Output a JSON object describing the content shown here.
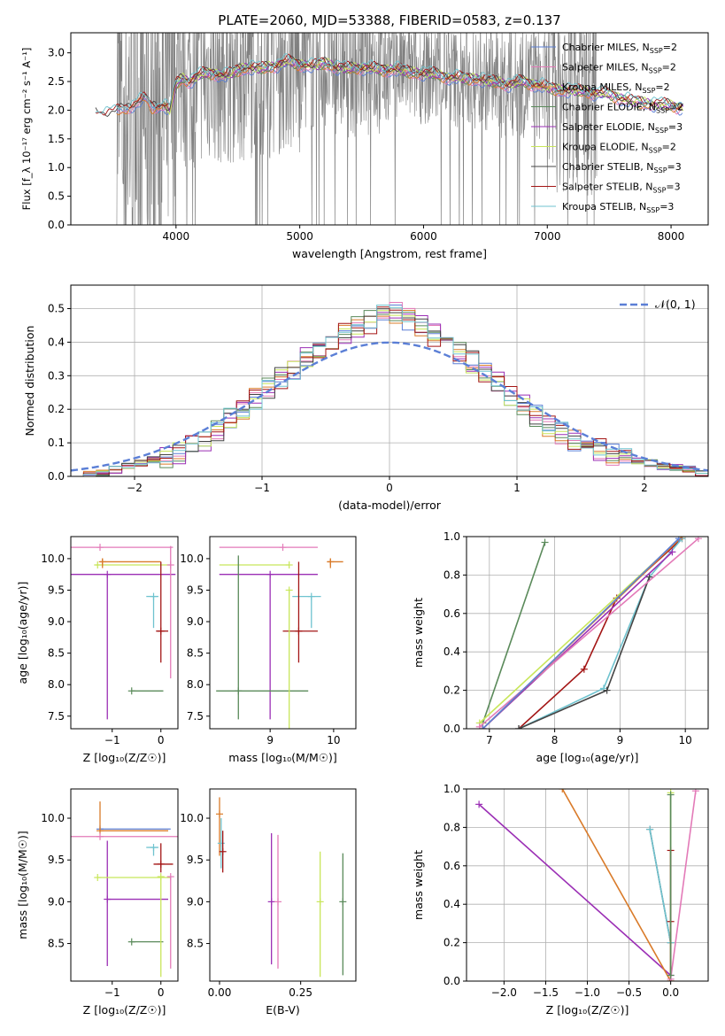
{
  "figure": {
    "title": "PLATE=2060, MJD=53388, FIBERID=0583, z=0.137",
    "colors": {
      "Chabrier MILES": "#5b7fd6",
      "Salpeter MILES": "#e37ab8",
      "Kroupa MILES": "#d97b2a",
      "Chabrier ELODIE": "#5a8a5a",
      "Salpeter ELODIE": "#9b2fb5",
      "Kroupa ELODIE": "#c8e65a",
      "Chabrier STELIB": "#444444",
      "Salpeter STELIB": "#a31515",
      "Kroupa STELIB": "#6fc3cf",
      "data": "#808080",
      "normal": "#5b7fd6"
    }
  },
  "chart_data": [
    {
      "id": "spectrum",
      "type": "line",
      "xlabel": "wavelength [Angstrom, rest frame]",
      "ylabel": "Flux [f_λ 10⁻¹⁷ erg cm⁻² s⁻¹ A⁻¹]",
      "xlim": [
        3150,
        8300
      ],
      "ylim": [
        0,
        3.35
      ],
      "xticks": [
        4000,
        5000,
        6000,
        7000,
        8000
      ],
      "yticks": [
        0.0,
        0.5,
        1.0,
        1.5,
        2.0,
        2.5,
        3.0
      ],
      "grid": false,
      "legend_position": "top-right",
      "legend": [
        {
          "base": "Chabrier MILES, N",
          "sub": "SSP",
          "tail": "=2"
        },
        {
          "base": "Salpeter MILES, N",
          "sub": "SSP",
          "tail": "=2"
        },
        {
          "base": "Kroupa MILES, N",
          "sub": "SSP",
          "tail": "=2"
        },
        {
          "base": "Chabrier ELODIE, N",
          "sub": "SSP",
          "tail": "=2"
        },
        {
          "base": "Salpeter ELODIE, N",
          "sub": "SSP",
          "tail": "=3"
        },
        {
          "base": "Kroupa ELODIE, N",
          "sub": "SSP",
          "tail": "=2"
        },
        {
          "base": "Chabrier STELIB, N",
          "sub": "SSP",
          "tail": "=3"
        },
        {
          "base": "Salpeter STELIB, N",
          "sub": "SSP",
          "tail": "=3"
        },
        {
          "base": "Kroupa STELIB, N",
          "sub": "SSP",
          "tail": "=3"
        }
      ],
      "model_continuum": {
        "x": [
          3350,
          3500,
          3650,
          3750,
          3800,
          3900,
          3950,
          4000,
          4050,
          4100,
          4200,
          4300,
          4400,
          4500,
          4600,
          4700,
          4800,
          4900,
          5000,
          5100,
          5200,
          5300,
          5400,
          5500,
          5600,
          5700,
          5800,
          5900,
          6000,
          6100,
          6200,
          6300,
          6400,
          6500,
          6600,
          6700,
          6800,
          6900,
          7000,
          7100,
          7200,
          7300,
          7400,
          7500,
          7600,
          7700,
          7800,
          7900,
          8000,
          8100
        ],
        "y": [
          1.95,
          1.95,
          2.1,
          2.2,
          2.05,
          2.1,
          2.0,
          2.45,
          2.55,
          2.5,
          2.62,
          2.65,
          2.6,
          2.7,
          2.75,
          2.72,
          2.78,
          2.85,
          2.8,
          2.77,
          2.82,
          2.75,
          2.72,
          2.75,
          2.72,
          2.7,
          2.72,
          2.65,
          2.65,
          2.62,
          2.58,
          2.56,
          2.55,
          2.52,
          2.48,
          2.45,
          2.5,
          2.45,
          2.4,
          2.35,
          2.35,
          2.32,
          2.3,
          2.28,
          2.2,
          2.15,
          2.12,
          2.1,
          2.08,
          2.05
        ]
      }
    },
    {
      "id": "residuals",
      "type": "area",
      "xlabel": "(data-model)/error",
      "ylabel": "Normed distribution",
      "xlim": [
        -2.5,
        2.5
      ],
      "ylim": [
        0,
        0.57
      ],
      "xticks": [
        -2,
        -1,
        0,
        1,
        2
      ],
      "xticklabels": [
        "−2",
        "−1",
        "0",
        "1",
        "2"
      ],
      "yticks": [
        0.0,
        0.1,
        0.2,
        0.3,
        0.4,
        0.5
      ],
      "grid": true,
      "legend_position": "top-right",
      "legend_label": "𝒩(0, 1)",
      "normal": {
        "mean": 0,
        "sigma": 1
      },
      "bins": {
        "start": -2.5,
        "width": 0.1
      },
      "hist_values": [
        0.0,
        0.005,
        0.01,
        0.02,
        0.03,
        0.04,
        0.05,
        0.06,
        0.07,
        0.09,
        0.11,
        0.14,
        0.17,
        0.2,
        0.23,
        0.26,
        0.29,
        0.32,
        0.35,
        0.38,
        0.41,
        0.43,
        0.45,
        0.46,
        0.48,
        0.49,
        0.47,
        0.45,
        0.42,
        0.39,
        0.37,
        0.34,
        0.31,
        0.28,
        0.24,
        0.21,
        0.18,
        0.15,
        0.13,
        0.11,
        0.09,
        0.08,
        0.065,
        0.055,
        0.045,
        0.04,
        0.03,
        0.025,
        0.02,
        0.01
      ]
    },
    {
      "id": "age_vs_Z",
      "type": "scatter",
      "xlabel": "Z [log₁₀(Z/Z☉)]",
      "ylabel": "age  [log₁₀(age/yr)]",
      "xlim": [
        -1.85,
        0.35
      ],
      "ylim": [
        7.3,
        10.35
      ],
      "xticks": [
        -1,
        0
      ],
      "xticklabels": [
        "−1",
        "0"
      ],
      "yticks": [
        7.5,
        8.0,
        8.5,
        9.0,
        9.5,
        10.0
      ],
      "grid": false,
      "points": [
        {
          "model": "Salpeter MILES",
          "x": -1.25,
          "xerr": [
            0.6,
            1.5
          ],
          "y": 10.18,
          "yerr": [
            0.0,
            0.0
          ]
        },
        {
          "model": "Kroupa ELODIE",
          "x": -1.3,
          "xerr": [
            0.05,
            1.5
          ],
          "y": 9.9,
          "yerr": [
            0.0,
            0.0
          ]
        },
        {
          "model": "Kroupa MILES",
          "x": -1.2,
          "xerr": [
            0.05,
            1.2
          ],
          "y": 9.95,
          "yerr": [
            0.1,
            0.05
          ]
        },
        {
          "model": "Salpeter ELODIE",
          "x": -1.1,
          "xerr": [
            1.0,
            1.4
          ],
          "y": 9.75,
          "yerr": [
            2.3,
            0.0
          ]
        },
        {
          "model": "Kroupa STELIB",
          "x": -0.15,
          "xerr": [
            0.15,
            0.1
          ],
          "y": 9.4,
          "yerr": [
            0.5,
            0.0
          ]
        },
        {
          "model": "Salpeter STELIB",
          "x": 0.0,
          "xerr": [
            0.1,
            0.15
          ],
          "y": 8.85,
          "yerr": [
            0.5,
            1.1
          ]
        },
        {
          "model": "Chabrier ELODIE",
          "x": -0.6,
          "xerr": [
            0.0,
            0.65
          ],
          "y": 7.9,
          "yerr": [
            0.0,
            0.0
          ]
        },
        {
          "model": "Salpeter MILES",
          "x": 0.2,
          "xerr": [
            0.0,
            0.0
          ],
          "y": 9.9,
          "yerr": [
            1.8,
            0.3
          ]
        }
      ]
    },
    {
      "id": "age_vs_mass",
      "type": "scatter",
      "xlabel": "mass [log₁₀(M/M☉)]",
      "ylabel": "",
      "xlim": [
        8.05,
        10.35
      ],
      "ylim": [
        7.3,
        10.35
      ],
      "xticks": [
        9,
        10
      ],
      "yticks": [
        7.5,
        8.0,
        8.5,
        9.0,
        9.5,
        10.0
      ],
      "grid": false,
      "points": [
        {
          "model": "Salpeter MILES",
          "x": 9.2,
          "xerr": [
            1.0,
            0.55
          ],
          "y": 10.18,
          "yerr": [
            0.0,
            0.0
          ]
        },
        {
          "model": "Kroupa ELODIE",
          "x": 9.3,
          "xerr": [
            1.1,
            0.0
          ],
          "y": 9.9,
          "yerr": [
            0.0,
            0.0
          ]
        },
        {
          "model": "Kroupa MILES",
          "x": 9.95,
          "xerr": [
            0.05,
            0.2
          ],
          "y": 9.95,
          "yerr": [
            0.1,
            0.05
          ]
        },
        {
          "model": "Salpeter ELODIE",
          "x": 9.0,
          "xerr": [
            0.8,
            0.75
          ],
          "y": 9.75,
          "yerr": [
            2.3,
            0.0
          ]
        },
        {
          "model": "Kroupa STELIB",
          "x": 9.65,
          "xerr": [
            0.3,
            0.15
          ],
          "y": 9.4,
          "yerr": [
            0.5,
            0.0
          ]
        },
        {
          "model": "Salpeter STELIB",
          "x": 9.45,
          "xerr": [
            0.25,
            0.3
          ],
          "y": 8.85,
          "yerr": [
            0.5,
            1.1
          ]
        },
        {
          "model": "Chabrier ELODIE",
          "x": 8.5,
          "xerr": [
            0.35,
            1.1
          ],
          "y": 7.9,
          "yerr": [
            0.45,
            2.15
          ]
        },
        {
          "model": "Kroupa ELODIE",
          "x": 9.3,
          "xerr": [
            0.0,
            0.0
          ],
          "y": 9.5,
          "yerr": [
            2.2,
            0.0
          ]
        }
      ]
    },
    {
      "id": "massweight_vs_age",
      "type": "line",
      "xlabel": "age  [log₁₀(age/yr)]",
      "ylabel": "mass weight",
      "xlim": [
        6.65,
        10.35
      ],
      "ylim": [
        0,
        1.0
      ],
      "xticks": [
        7,
        8,
        9,
        10
      ],
      "yticks": [
        0.0,
        0.2,
        0.4,
        0.6,
        0.8,
        1.0
      ],
      "grid": true,
      "series": [
        {
          "model": "Chabrier ELODIE",
          "x": [
            6.9,
            7.85
          ],
          "y": [
            0.03,
            0.97
          ]
        },
        {
          "model": "Salpeter STELIB",
          "x": [
            7.45,
            8.45,
            8.95,
            9.95
          ],
          "y": [
            0.0,
            0.31,
            0.68,
            0.99
          ]
        },
        {
          "model": "Kroupa STELIB",
          "x": [
            7.45,
            8.75,
            9.45,
            9.95
          ],
          "y": [
            0.0,
            0.21,
            0.79,
            0.99
          ]
        },
        {
          "model": "Chabrier STELIB",
          "x": [
            7.45,
            8.8,
            9.45
          ],
          "y": [
            0.0,
            0.2,
            0.79
          ]
        },
        {
          "model": "Kroupa ELODIE",
          "x": [
            6.85,
            9.95
          ],
          "y": [
            0.03,
            1.0
          ]
        },
        {
          "model": "Salpeter ELODIE",
          "x": [
            6.9,
            9.8
          ],
          "y": [
            0.0,
            0.92
          ]
        },
        {
          "model": "Salpeter MILES",
          "x": [
            6.85,
            10.2
          ],
          "y": [
            0.01,
            0.99
          ]
        },
        {
          "model": "Kroupa MILES",
          "x": [
            6.9,
            9.95
          ],
          "y": [
            0.0,
            1.0
          ]
        },
        {
          "model": "Chabrier MILES",
          "x": [
            6.9,
            9.9
          ],
          "y": [
            0.0,
            0.99
          ]
        }
      ]
    },
    {
      "id": "mass_vs_Z",
      "type": "scatter",
      "xlabel": "Z [log₁₀(Z/Z☉)]",
      "ylabel": "mass [log₁₀(M/M☉)]",
      "xlim": [
        -1.85,
        0.35
      ],
      "ylim": [
        8.05,
        10.35
      ],
      "xticks": [
        -1,
        0
      ],
      "xticklabels": [
        "−1",
        "0"
      ],
      "yticks": [
        8.5,
        9.0,
        9.5,
        10.0
      ],
      "grid": false,
      "points": [
        {
          "model": "Chabrier MILES",
          "x": -1.25,
          "xerr": [
            0.0,
            1.45
          ],
          "y": 9.87,
          "yerr": [
            0.0,
            0.0
          ]
        },
        {
          "model": "Kroupa MILES",
          "x": -1.25,
          "xerr": [
            0.0,
            1.4
          ],
          "y": 9.85,
          "yerr": [
            0.0,
            0.35
          ]
        },
        {
          "model": "Salpeter MILES",
          "x": -1.25,
          "xerr": [
            0.6,
            1.6
          ],
          "y": 9.78,
          "yerr": [
            0.0,
            0.0
          ]
        },
        {
          "model": "Salpeter ELODIE",
          "x": -1.1,
          "xerr": [
            0.0,
            1.25
          ],
          "y": 9.03,
          "yerr": [
            0.8,
            0.7
          ]
        },
        {
          "model": "Kroupa ELODIE",
          "x": -1.3,
          "xerr": [
            0.0,
            1.5
          ],
          "y": 9.29,
          "yerr": [
            0.0,
            0.0
          ]
        },
        {
          "model": "Kroupa STELIB",
          "x": -0.15,
          "xerr": [
            0.15,
            0.1
          ],
          "y": 9.65,
          "yerr": [
            0.1,
            0.0
          ]
        },
        {
          "model": "Salpeter STELIB",
          "x": 0.0,
          "xerr": [
            0.15,
            0.25
          ],
          "y": 9.45,
          "yerr": [
            0.1,
            0.25
          ]
        },
        {
          "model": "Chabrier ELODIE",
          "x": -0.6,
          "xerr": [
            0.0,
            0.65
          ],
          "y": 8.52,
          "yerr": [
            0.0,
            0.0
          ]
        },
        {
          "model": "Kroupa ELODIE",
          "x": 0.0,
          "xerr": [
            0.0,
            0.0
          ],
          "y": 9.3,
          "yerr": [
            1.2,
            0.0
          ]
        },
        {
          "model": "Salpeter MILES",
          "x": 0.2,
          "xerr": [
            0.0,
            0.0
          ],
          "y": 9.3,
          "yerr": [
            1.1,
            0.0
          ]
        }
      ]
    },
    {
      "id": "mass_vs_EBV",
      "type": "scatter",
      "xlabel": "E(B-V)",
      "ylabel": "",
      "xlim": [
        -0.03,
        0.42
      ],
      "ylim": [
        8.05,
        10.35
      ],
      "xticks": [
        0.0,
        0.25
      ],
      "xticklabels": [
        "0.00",
        "0.25"
      ],
      "yticks": [
        8.5,
        9.0,
        9.5,
        10.0
      ],
      "grid": false,
      "points": [
        {
          "model": "Kroupa MILES",
          "x": 0.0,
          "yerr": [
            0.0,
            0.0
          ],
          "y": 10.05,
          "ylo": 9.55,
          "yhi": 10.25
        },
        {
          "model": "Kroupa STELIB",
          "x": 0.005,
          "y": 9.7,
          "ylo": 9.4,
          "yhi": 10.0
        },
        {
          "model": "Salpeter STELIB",
          "x": 0.01,
          "y": 9.6,
          "ylo": 9.35,
          "yhi": 9.85
        },
        {
          "model": "Salpeter ELODIE",
          "x": 0.16,
          "y": 9.0,
          "ylo": 8.25,
          "yhi": 9.82
        },
        {
          "model": "Salpeter MILES",
          "x": 0.18,
          "y": 9.0,
          "ylo": 8.2,
          "yhi": 9.8
        },
        {
          "model": "Kroupa ELODIE",
          "x": 0.31,
          "y": 9.0,
          "ylo": 8.1,
          "yhi": 9.6
        },
        {
          "model": "Chabrier ELODIE",
          "x": 0.38,
          "y": 9.0,
          "ylo": 8.12,
          "yhi": 9.58
        }
      ]
    },
    {
      "id": "massweight_vs_Z",
      "type": "line",
      "xlabel": "Z [log₁₀(Z/Z☉)]",
      "ylabel": "mass weight",
      "xlim": [
        -2.45,
        0.45
      ],
      "ylim": [
        0,
        1.0
      ],
      "xticks": [
        -2.0,
        -1.5,
        -1.0,
        -0.5,
        0.0
      ],
      "xticklabels": [
        "−2.0",
        "−1.5",
        "−1.0",
        "−0.5",
        "0.0"
      ],
      "yticks": [
        0.0,
        0.2,
        0.4,
        0.6,
        0.8,
        1.0
      ],
      "grid": true,
      "series": [
        {
          "model": "Salpeter ELODIE",
          "x": [
            -2.3,
            0.0
          ],
          "y": [
            0.92,
            0.03
          ]
        },
        {
          "model": "Kroupa MILES",
          "x": [
            -1.3,
            0.0
          ],
          "y": [
            1.0,
            0.0
          ]
        },
        {
          "model": "Chabrier STELIB",
          "x": [
            -0.25,
            0.0
          ],
          "y": [
            0.79,
            0.2
          ]
        },
        {
          "model": "Kroupa STELIB",
          "x": [
            -0.25,
            0.0
          ],
          "y": [
            0.79,
            0.2
          ]
        },
        {
          "model": "Kroupa ELODIE",
          "x": [
            0.0,
            0.0
          ],
          "y": [
            0.98,
            0.0
          ]
        },
        {
          "model": "Salpeter STELIB",
          "x": [
            0.0,
            0.0,
            0.0
          ],
          "y": [
            0.68,
            0.31,
            0.0
          ]
        },
        {
          "model": "Salpeter MILES",
          "x": [
            0.3,
            0.0
          ],
          "y": [
            0.99,
            0.01
          ]
        },
        {
          "model": "Chabrier ELODIE",
          "x": [
            0.0,
            0.0
          ],
          "y": [
            0.97,
            0.03
          ]
        }
      ]
    }
  ]
}
